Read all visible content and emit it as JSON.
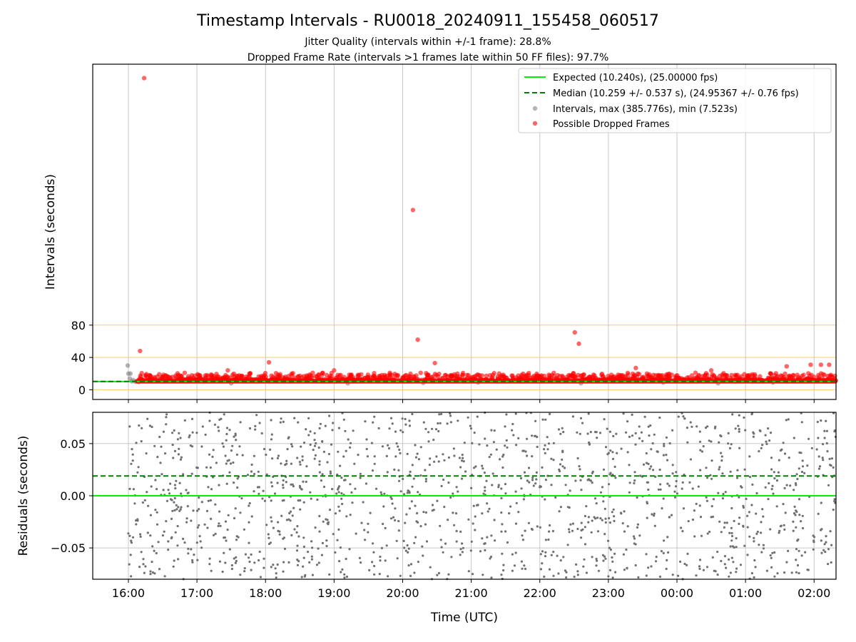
{
  "header": {
    "title": "Timestamp Intervals - RU0018_20240911_155458_060517",
    "subtitle_1": "Jitter Quality (intervals within +/-1 frame): 28.8%",
    "subtitle_2": "Dropped Frame Rate (intervals >1 frames late within 50 FF files): 97.7%"
  },
  "chart_data": [
    {
      "type": "scatter",
      "panel": "top",
      "ylabel": "Intervals (seconds)",
      "xlabel": "",
      "x_range_hours": [
        15.48,
        26.32
      ],
      "ylim": [
        -12,
        403
      ],
      "yticks": [
        0,
        40,
        80
      ],
      "ytick_labels": [
        "0",
        "40",
        "80"
      ],
      "reference_lines_y": [
        0,
        40,
        80
      ],
      "reference_line_color": "#ffc34d",
      "grid_x": true,
      "legend_position": "upper right",
      "series": [
        {
          "name": "Expected (10.240s), (25.00000 fps)",
          "kind": "hline",
          "y": 10.24,
          "color": "#00ee00",
          "style": "solid"
        },
        {
          "name": "Median (10.259 +/- 0.537 s), (24.95367 +/- 0.76 fps)",
          "kind": "hline",
          "y": 10.259,
          "color": "#007f00",
          "style": "dashed"
        },
        {
          "name": "Intervals, max (385.776s), min (7.523s)",
          "kind": "scatter",
          "color": "#808080",
          "points": [
            [
              15.99,
              30
            ],
            [
              16.0,
              20
            ],
            [
              16.02,
              14
            ],
            [
              16.03,
              20
            ],
            [
              16.05,
              10.5
            ],
            [
              16.07,
              12
            ],
            [
              16.1,
              10
            ],
            [
              16.15,
              9.5
            ],
            [
              17.5,
              8
            ],
            [
              19.2,
              8
            ],
            [
              20.3,
              8.5
            ],
            [
              21.1,
              9
            ],
            [
              22.6,
              8
            ],
            [
              23.8,
              9
            ],
            [
              24.6,
              8
            ],
            [
              25.4,
              9
            ]
          ]
        },
        {
          "name": "Possible Dropped Frames",
          "kind": "scatter",
          "color": "#ff0000",
          "band": {
            "x_start": 16.12,
            "x_end": 26.32,
            "y_base": 10.5,
            "y_dense_max": 21
          },
          "outliers": [
            [
              16.23,
              385.8
            ],
            [
              16.17,
              48
            ],
            [
              20.15,
              222.5
            ],
            [
              20.22,
              62
            ],
            [
              20.47,
              33
            ],
            [
              22.51,
              71
            ],
            [
              22.57,
              57
            ],
            [
              18.05,
              34
            ],
            [
              19.0,
              24
            ],
            [
              17.45,
              24
            ],
            [
              23.4,
              27
            ],
            [
              24.5,
              24
            ],
            [
              25.6,
              29
            ],
            [
              25.95,
              31
            ],
            [
              26.1,
              31
            ],
            [
              26.22,
              31
            ]
          ]
        }
      ]
    },
    {
      "type": "scatter",
      "panel": "bottom",
      "xlabel": "Time (UTC)",
      "ylabel": "Residuals (seconds)",
      "x_range_hours": [
        15.48,
        26.32
      ],
      "ylim": [
        -0.08,
        0.08
      ],
      "yticks": [
        -0.05,
        0.0,
        0.05
      ],
      "ytick_labels": [
        "−0.05",
        "0.00",
        "0.05"
      ],
      "xticks_hours": [
        16,
        17,
        18,
        19,
        20,
        21,
        22,
        23,
        24,
        25,
        26
      ],
      "xtick_labels": [
        "16:00",
        "17:00",
        "18:00",
        "19:00",
        "20:00",
        "21:00",
        "22:00",
        "23:00",
        "00:00",
        "01:00",
        "02:00"
      ],
      "grid": true,
      "expected_line_y": 0.0,
      "median_line_y": 0.019,
      "point_color": "#707070",
      "residual_points_x_range": [
        15.98,
        26.32
      ]
    }
  ]
}
